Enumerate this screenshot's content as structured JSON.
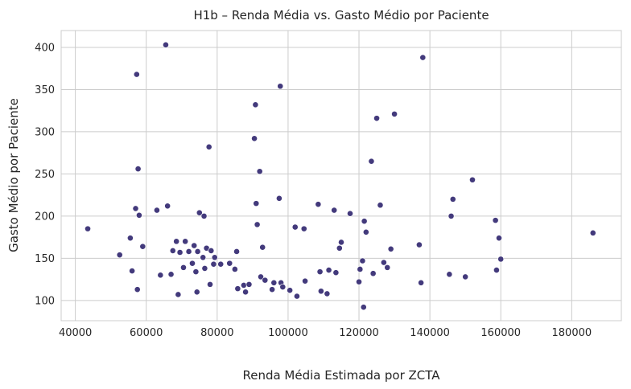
{
  "chart_data": {
    "type": "scatter",
    "title": "H1b – Renda Média vs. Gasto Médio por Paciente",
    "xlabel": "Renda Média Estimada por ZCTA",
    "ylabel": "Gasto Médio por Paciente",
    "xlim": [
      36000,
      194000
    ],
    "ylim": [
      76,
      420
    ],
    "xticks": [
      40000,
      60000,
      80000,
      100000,
      120000,
      140000,
      160000,
      180000
    ],
    "yticks": [
      100,
      150,
      200,
      250,
      300,
      350,
      400
    ],
    "grid": true,
    "point_color": "#433a7c",
    "points": [
      [
        43500,
        185
      ],
      [
        52500,
        154
      ],
      [
        55500,
        174
      ],
      [
        56000,
        135
      ],
      [
        57000,
        209
      ],
      [
        57300,
        368
      ],
      [
        57500,
        113
      ],
      [
        57700,
        256
      ],
      [
        58000,
        201
      ],
      [
        59000,
        164
      ],
      [
        63000,
        207
      ],
      [
        64000,
        130
      ],
      [
        65500,
        403
      ],
      [
        66000,
        212
      ],
      [
        67000,
        131
      ],
      [
        67500,
        159
      ],
      [
        68500,
        170
      ],
      [
        69000,
        107
      ],
      [
        69500,
        157
      ],
      [
        70500,
        139
      ],
      [
        71000,
        170
      ],
      [
        72000,
        158
      ],
      [
        73000,
        144
      ],
      [
        73500,
        165
      ],
      [
        74000,
        134
      ],
      [
        74300,
        110
      ],
      [
        74500,
        158
      ],
      [
        75000,
        204
      ],
      [
        76000,
        151
      ],
      [
        76300,
        200
      ],
      [
        76500,
        138
      ],
      [
        77000,
        162
      ],
      [
        77700,
        282
      ],
      [
        78000,
        119
      ],
      [
        78300,
        159
      ],
      [
        79000,
        143
      ],
      [
        79300,
        151
      ],
      [
        81000,
        143
      ],
      [
        83500,
        144
      ],
      [
        85000,
        137
      ],
      [
        85500,
        158
      ],
      [
        85800,
        114
      ],
      [
        87500,
        118
      ],
      [
        88000,
        110
      ],
      [
        89000,
        119
      ],
      [
        90500,
        292
      ],
      [
        90800,
        332
      ],
      [
        91000,
        215
      ],
      [
        91300,
        190
      ],
      [
        92000,
        253
      ],
      [
        92300,
        128
      ],
      [
        92800,
        163
      ],
      [
        93500,
        124
      ],
      [
        95500,
        113
      ],
      [
        96000,
        121
      ],
      [
        97500,
        221
      ],
      [
        97800,
        354
      ],
      [
        98000,
        121
      ],
      [
        98500,
        116
      ],
      [
        100500,
        112
      ],
      [
        102000,
        187
      ],
      [
        102500,
        105
      ],
      [
        104500,
        185
      ],
      [
        104800,
        123
      ],
      [
        108500,
        214
      ],
      [
        109000,
        134
      ],
      [
        109300,
        111
      ],
      [
        111000,
        108
      ],
      [
        111500,
        136
      ],
      [
        113000,
        207
      ],
      [
        113500,
        133
      ],
      [
        114500,
        162
      ],
      [
        115000,
        169
      ],
      [
        117500,
        203
      ],
      [
        120000,
        122
      ],
      [
        120300,
        137
      ],
      [
        121000,
        147
      ],
      [
        121300,
        92
      ],
      [
        121500,
        194
      ],
      [
        122000,
        181
      ],
      [
        123500,
        265
      ],
      [
        124000,
        132
      ],
      [
        125000,
        316
      ],
      [
        126000,
        213
      ],
      [
        127000,
        145
      ],
      [
        128000,
        139
      ],
      [
        129000,
        161
      ],
      [
        130000,
        321
      ],
      [
        137000,
        166
      ],
      [
        137500,
        121
      ],
      [
        138000,
        388
      ],
      [
        145500,
        131
      ],
      [
        146000,
        200
      ],
      [
        146500,
        220
      ],
      [
        150000,
        128
      ],
      [
        152000,
        243
      ],
      [
        158500,
        195
      ],
      [
        158800,
        136
      ],
      [
        159500,
        174
      ],
      [
        160000,
        149
      ],
      [
        186000,
        180
      ]
    ]
  }
}
